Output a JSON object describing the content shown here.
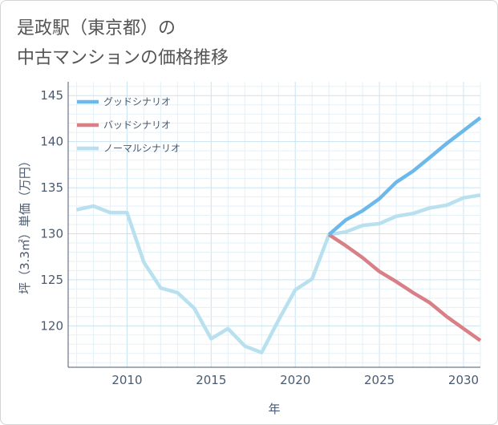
{
  "title": {
    "line1": "是政駅（東京都）の",
    "line2": "中古マンションの価格推移"
  },
  "chart_data": {
    "type": "line",
    "xlabel": "年",
    "ylabel": "坪（3.3㎡）単価（万円）",
    "xlim": [
      2006.5,
      2031
    ],
    "ylim": [
      115.5,
      146.5
    ],
    "xticks": [
      2010,
      2015,
      2020,
      2025,
      2030
    ],
    "yticks": [
      120,
      125,
      130,
      135,
      140,
      145
    ],
    "grid": true,
    "legend_position": "top-left",
    "series": [
      {
        "name": "グッドシナリオ",
        "color": "#6cb8eb",
        "x": [
          2022,
          2023,
          2024,
          2025,
          2026,
          2027,
          2028,
          2029,
          2030,
          2031
        ],
        "values": [
          129.9,
          131.5,
          132.5,
          133.8,
          135.6,
          136.8,
          138.3,
          139.8,
          141.2,
          142.6
        ]
      },
      {
        "name": "バッドシナリオ",
        "color": "#d97f86",
        "x": [
          2022,
          2023,
          2024,
          2025,
          2026,
          2027,
          2028,
          2029,
          2030,
          2031
        ],
        "values": [
          129.9,
          128.7,
          127.4,
          125.9,
          124.8,
          123.6,
          122.5,
          121.0,
          119.7,
          118.4
        ]
      },
      {
        "name": "ノーマルシナリオ",
        "color": "#b8e0ef",
        "x": [
          2007,
          2008,
          2009,
          2010,
          2011,
          2012,
          2013,
          2014,
          2015,
          2016,
          2017,
          2018,
          2019,
          2020,
          2021,
          2022,
          2023,
          2024,
          2025,
          2026,
          2027,
          2028,
          2029,
          2030,
          2031
        ],
        "values": [
          132.6,
          133.0,
          132.3,
          132.3,
          126.9,
          124.1,
          123.6,
          121.9,
          118.6,
          119.7,
          117.8,
          117.1,
          120.6,
          123.9,
          125.1,
          129.9,
          130.2,
          130.9,
          131.1,
          131.9,
          132.2,
          132.8,
          133.1,
          133.9,
          134.2
        ]
      }
    ]
  }
}
